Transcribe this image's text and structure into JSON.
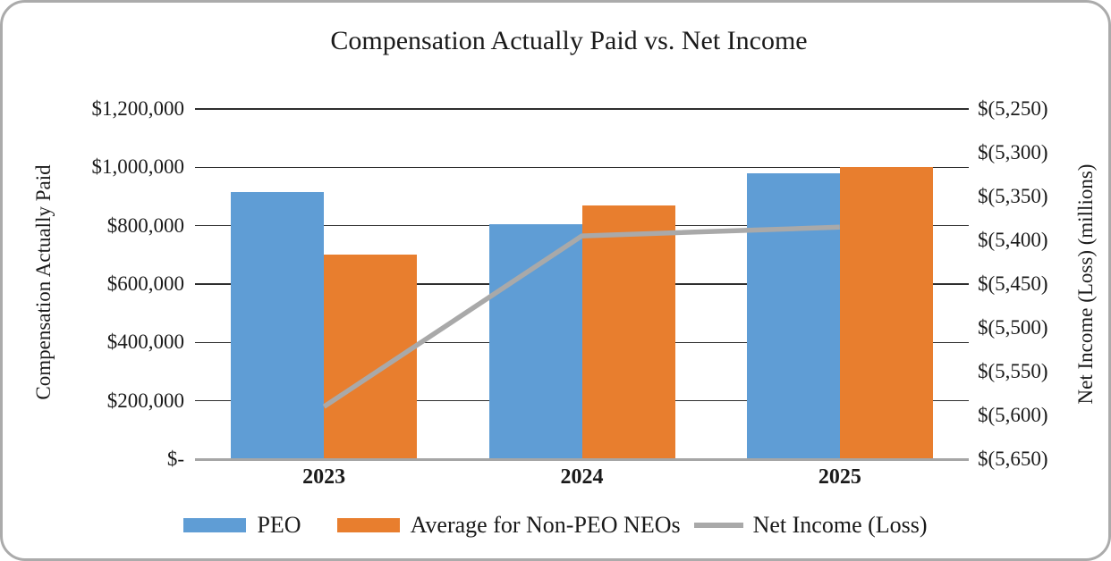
{
  "chart_data": {
    "type": "bar",
    "subtype": "clustered-bars-with-line-dual-axis",
    "title": "Compensation Actually Paid vs. Net Income",
    "categories": [
      "2023",
      "2024",
      "2025"
    ],
    "bar_series": [
      {
        "name": "PEO",
        "color": "#5f9dd5",
        "values": [
          915000,
          805000,
          980000
        ]
      },
      {
        "name": "Average for Non-PEO NEOs",
        "color": "#e87e2e",
        "values": [
          700000,
          870000,
          1000000
        ]
      }
    ],
    "line_series": {
      "name": "Net Income (Loss)",
      "color": "#a9a9a9",
      "axis": "right",
      "values": [
        -5590,
        -5395,
        -5385
      ]
    },
    "left_axis": {
      "label": "Compensation Actually Paid",
      "min": 0,
      "max": 1200000,
      "tick_step": 200000,
      "ticks": [
        {
          "value": 1200000,
          "label": "$1,200,000"
        },
        {
          "value": 1000000,
          "label": "$1,000,000"
        },
        {
          "value": 800000,
          "label": "$800,000"
        },
        {
          "value": 600000,
          "label": "$600,000"
        },
        {
          "value": 400000,
          "label": "$400,000"
        },
        {
          "value": 200000,
          "label": "$200,000"
        },
        {
          "value": 0,
          "label": "$-"
        }
      ]
    },
    "right_axis": {
      "label": "Net Income (Loss) (millions)",
      "min": -5650,
      "max": -5250,
      "tick_step": 50,
      "ticks": [
        {
          "value": -5250,
          "label": "$(5,250)"
        },
        {
          "value": -5300,
          "label": "$(5,300)"
        },
        {
          "value": -5350,
          "label": "$(5,350)"
        },
        {
          "value": -5400,
          "label": "$(5,400)"
        },
        {
          "value": -5450,
          "label": "$(5,450)"
        },
        {
          "value": -5500,
          "label": "$(5,500)"
        },
        {
          "value": -5550,
          "label": "$(5,550)"
        },
        {
          "value": -5600,
          "label": "$(5,600)"
        },
        {
          "value": -5650,
          "label": "$(5,650)"
        }
      ]
    },
    "grid": true,
    "legend": {
      "position": "bottom",
      "entries": [
        {
          "label": "PEO",
          "swatch": "rect",
          "color": "#5f9dd5"
        },
        {
          "label": "Average for Non-PEO NEOs",
          "swatch": "rect",
          "color": "#e87e2e"
        },
        {
          "label": "Net Income (Loss)",
          "swatch": "line",
          "color": "#a9a9a9"
        }
      ]
    },
    "colors": {
      "grid": "#2e2e2e",
      "axis_line": "#a6a6a6",
      "text": "#1a1a1a",
      "card_border": "#ababab"
    }
  }
}
